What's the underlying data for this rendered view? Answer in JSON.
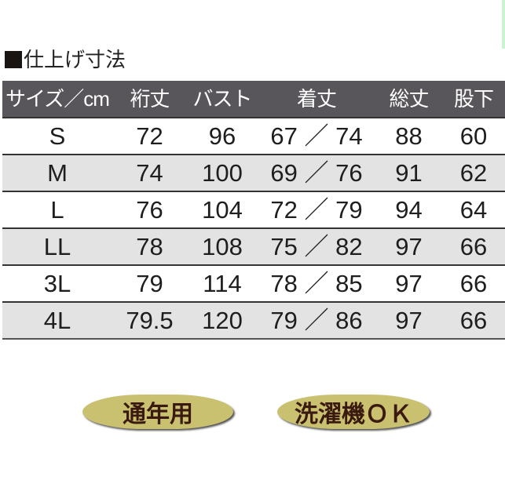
{
  "title": "仕上げ寸法",
  "table": {
    "headers": [
      "サイズ／cm",
      "裄丈",
      "バスト",
      "着丈",
      "総丈",
      "股下"
    ],
    "rows": [
      [
        "S",
        "72",
        "96",
        "67 ／ 74",
        "88",
        "60"
      ],
      [
        "M",
        "74",
        "100",
        "69 ／ 76",
        "91",
        "62"
      ],
      [
        "L",
        "76",
        "104",
        "72 ／ 79",
        "94",
        "64"
      ],
      [
        "LL",
        "78",
        "108",
        "75 ／ 82",
        "97",
        "66"
      ],
      [
        "3L",
        "79",
        "114",
        "78 ／ 85",
        "97",
        "66"
      ],
      [
        "4L",
        "79.5",
        "120",
        "79 ／ 86",
        "97",
        "66"
      ]
    ]
  },
  "badges": [
    "通年用",
    "洗濯機ＯＫ"
  ],
  "colors": {
    "header_bg": "#58565a",
    "badge_bg": "#c9c070",
    "badge_text": "#3a1a10",
    "alt_row": "#e3e3e3"
  }
}
